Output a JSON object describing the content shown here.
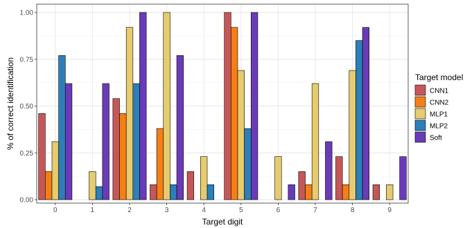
{
  "chart_data": {
    "type": "bar",
    "xlabel": "Target digit",
    "ylabel": "% of correct identification",
    "categories": [
      "0",
      "1",
      "2",
      "3",
      "4",
      "5",
      "6",
      "7",
      "8",
      "9"
    ],
    "ylim": [
      0,
      1
    ],
    "yticks": [
      "0.00",
      "0.25",
      "0.50",
      "0.75",
      "1.00"
    ],
    "grid": true,
    "legend": {
      "title": "Target model",
      "placement": "right"
    },
    "series": [
      {
        "name": "CNN1",
        "color": "#c65758",
        "values": [
          0.46,
          0.0,
          0.54,
          0.08,
          0.15,
          1.0,
          0.0,
          0.15,
          0.23,
          0.08
        ]
      },
      {
        "name": "CNN2",
        "color": "#f57f17",
        "values": [
          0.15,
          0.0,
          0.46,
          0.38,
          0.0,
          0.92,
          0.0,
          0.08,
          0.08,
          0.0
        ]
      },
      {
        "name": "MLP1",
        "color": "#e6cb6f",
        "values": [
          0.31,
          0.15,
          0.92,
          1.0,
          0.23,
          0.69,
          0.23,
          0.62,
          0.69,
          0.08
        ]
      },
      {
        "name": "MLP2",
        "color": "#2c7fb8",
        "values": [
          0.77,
          0.07,
          0.62,
          0.08,
          0.08,
          0.38,
          0.0,
          0.0,
          0.85,
          0.0
        ]
      },
      {
        "name": "Soft",
        "color": "#6a3bb8",
        "values": [
          0.62,
          0.62,
          1.0,
          0.77,
          0.0,
          1.0,
          0.08,
          0.31,
          0.92,
          0.23
        ]
      }
    ]
  }
}
